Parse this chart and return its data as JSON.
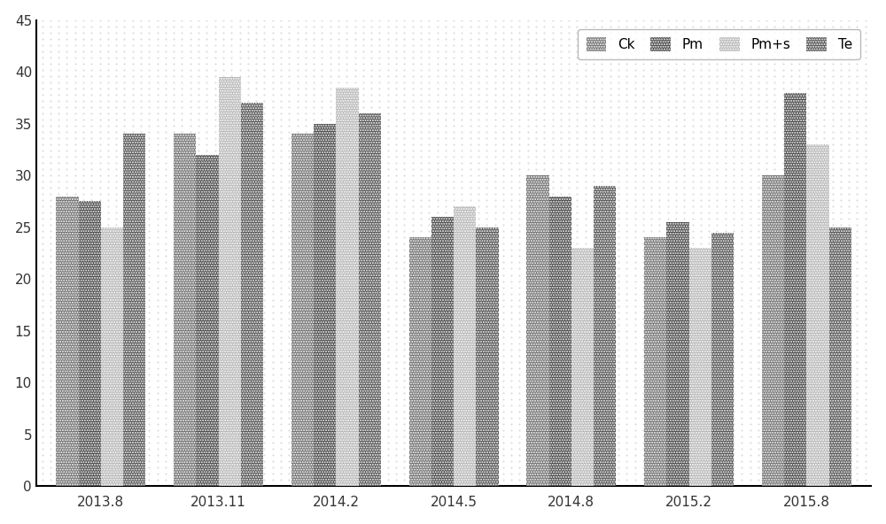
{
  "categories": [
    "2013.8",
    "2013.11",
    "2014.2",
    "2014.5",
    "2014.8",
    "2015.2",
    "2015.8"
  ],
  "series": {
    "Ck": [
      28,
      34,
      34,
      24,
      30,
      24,
      30
    ],
    "Pm": [
      27.5,
      32,
      35,
      26,
      28,
      25.5,
      38
    ],
    "Pm+s": [
      25,
      39.5,
      38.5,
      27,
      23,
      23,
      33
    ],
    "Te": [
      34,
      37,
      36,
      25,
      29,
      24.5,
      25
    ]
  },
  "colors": {
    "Ck": "#737373",
    "Pm": "#4a4a4a",
    "Pm+s": "#b8b8b8",
    "Te": "#555555"
  },
  "ylim": [
    0,
    45
  ],
  "yticks": [
    0,
    5,
    10,
    15,
    20,
    25,
    30,
    35,
    40,
    45
  ],
  "bar_width": 0.19,
  "legend_labels": [
    "Ck",
    "Pm",
    "Pm+s",
    "Te"
  ],
  "background_color": "#ffffff",
  "figure_background": "#ffffff",
  "dot_background": "#e8e8e8"
}
